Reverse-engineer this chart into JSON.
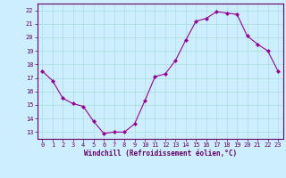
{
  "x": [
    0,
    1,
    2,
    3,
    4,
    5,
    6,
    7,
    8,
    9,
    10,
    11,
    12,
    13,
    14,
    15,
    16,
    17,
    18,
    19,
    20,
    21,
    22,
    23
  ],
  "y": [
    17.5,
    16.8,
    15.5,
    15.1,
    14.9,
    13.8,
    12.9,
    13.0,
    13.0,
    13.6,
    15.3,
    17.1,
    17.3,
    18.3,
    19.8,
    21.2,
    21.4,
    21.9,
    21.8,
    21.7,
    20.1,
    19.5,
    19.0,
    17.5
  ],
  "line_color": "#990099",
  "marker": "D",
  "marker_size": 2.0,
  "bg_color": "#cceeff",
  "grid_color": "#aadddd",
  "xlabel": "Windchill (Refroidissement éolien,°C)",
  "xlabel_color": "#660066",
  "tick_color": "#660066",
  "spine_color": "#660066",
  "ylim": [
    12.5,
    22.5
  ],
  "xlim": [
    -0.5,
    23.5
  ],
  "yticks": [
    13,
    14,
    15,
    16,
    17,
    18,
    19,
    20,
    21,
    22
  ],
  "xticks": [
    0,
    1,
    2,
    3,
    4,
    5,
    6,
    7,
    8,
    9,
    10,
    11,
    12,
    13,
    14,
    15,
    16,
    17,
    18,
    19,
    20,
    21,
    22,
    23
  ],
  "tick_fontsize": 5.0,
  "xlabel_fontsize": 5.5
}
